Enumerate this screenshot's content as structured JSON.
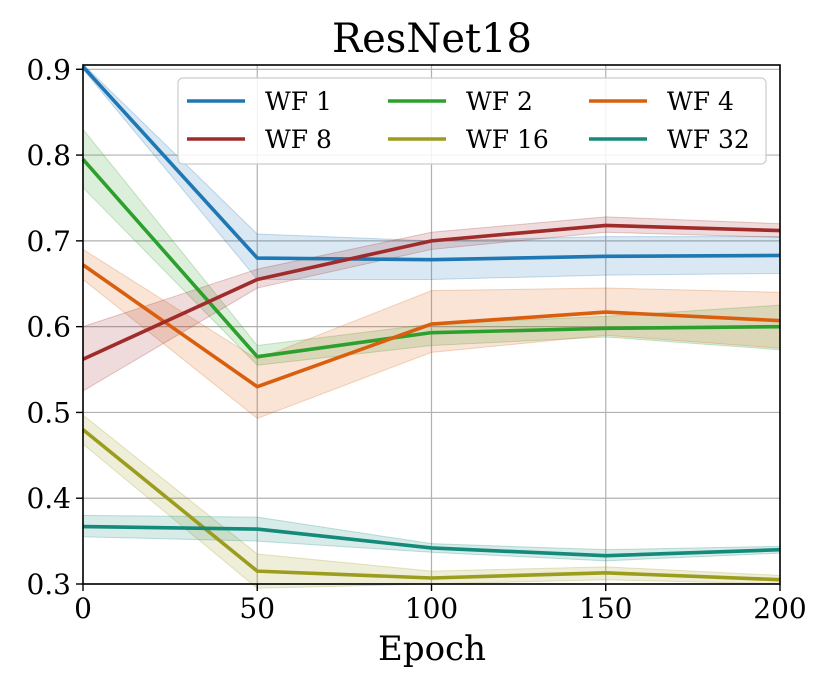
{
  "chart_data": {
    "type": "line",
    "title": "ResNet18",
    "xlabel": "Epoch",
    "ylabel": "",
    "xlim": [
      0,
      200
    ],
    "ylim": [
      0.3,
      0.905
    ],
    "xticks": [
      0,
      50,
      100,
      150,
      200
    ],
    "yticks": [
      0.3,
      0.4,
      0.5,
      0.6,
      0.7,
      0.8,
      0.9
    ],
    "xtick_labels": [
      "0",
      "50",
      "100",
      "150",
      "200"
    ],
    "ytick_labels": [
      "0.3",
      "0.4",
      "0.5",
      "0.6",
      "0.7",
      "0.8",
      "0.9"
    ],
    "grid": true,
    "legend": "upper-right, 3 columns",
    "x": [
      0,
      50,
      100,
      150,
      200
    ],
    "series": [
      {
        "name": "WF 1",
        "color": "#1f77b4",
        "values": [
          0.903,
          0.68,
          0.678,
          0.682,
          0.683
        ],
        "lower": [
          0.9,
          0.655,
          0.655,
          0.66,
          0.662
        ],
        "upper": [
          0.906,
          0.708,
          0.7,
          0.705,
          0.705
        ]
      },
      {
        "name": "WF 2",
        "color": "#2ca02c",
        "values": [
          0.795,
          0.565,
          0.593,
          0.598,
          0.6
        ],
        "lower": [
          0.762,
          0.555,
          0.578,
          0.588,
          0.573
        ],
        "upper": [
          0.83,
          0.578,
          0.603,
          0.612,
          0.625
        ]
      },
      {
        "name": "WF 4",
        "color": "#d95f0e",
        "values": [
          0.672,
          0.53,
          0.603,
          0.617,
          0.607
        ],
        "lower": [
          0.655,
          0.493,
          0.57,
          0.59,
          0.575
        ],
        "upper": [
          0.69,
          0.562,
          0.642,
          0.645,
          0.64
        ]
      },
      {
        "name": "WF 8",
        "color": "#a02b2b",
        "values": [
          0.562,
          0.655,
          0.7,
          0.718,
          0.712
        ],
        "lower": [
          0.525,
          0.645,
          0.69,
          0.71,
          0.704
        ],
        "upper": [
          0.6,
          0.667,
          0.71,
          0.728,
          0.72
        ]
      },
      {
        "name": "WF 16",
        "color": "#9c9c1f",
        "values": [
          0.48,
          0.315,
          0.307,
          0.313,
          0.305
        ],
        "lower": [
          0.463,
          0.295,
          0.3,
          0.305,
          0.3
        ],
        "upper": [
          0.497,
          0.335,
          0.315,
          0.32,
          0.31
        ]
      },
      {
        "name": "WF 32",
        "color": "#138a7a",
        "values": [
          0.367,
          0.364,
          0.342,
          0.333,
          0.34
        ],
        "lower": [
          0.355,
          0.35,
          0.337,
          0.327,
          0.336
        ],
        "upper": [
          0.38,
          0.378,
          0.347,
          0.34,
          0.344
        ]
      }
    ]
  }
}
